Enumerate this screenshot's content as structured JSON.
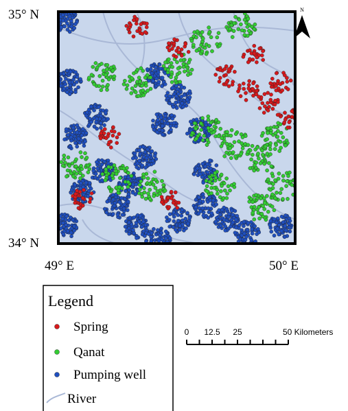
{
  "map": {
    "lat_labels": [
      "35° N",
      "34° N"
    ],
    "lon_labels": [
      "49° E",
      "50° E"
    ],
    "north": "N",
    "legend": {
      "title": "Legend",
      "items": [
        {
          "label": "Spring",
          "color": "#d7191c"
        },
        {
          "label": "Qanat",
          "color": "#33cc33"
        },
        {
          "label": "Pumping well",
          "color": "#1f4fbf"
        },
        {
          "label": "River",
          "color": "#a9b8d6"
        }
      ]
    },
    "scale_bar": {
      "labels": [
        "0",
        "12.5",
        "25",
        "50 Kilometers"
      ]
    }
  }
}
